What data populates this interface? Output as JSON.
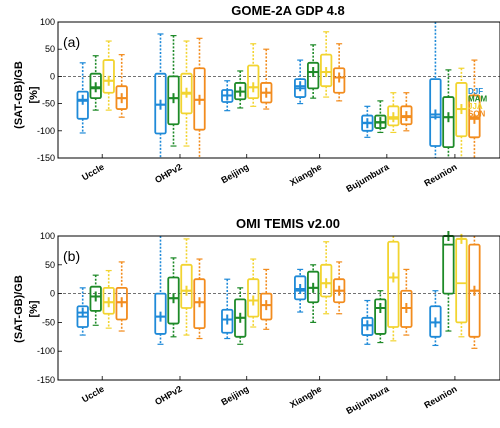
{
  "chart_data": [
    {
      "type": "box",
      "title": "GOME-2A GDP 4.8",
      "panel_label": "(a)",
      "ylabel": "(SAT-GB)/GB",
      "yunit": "[%]",
      "ylim": [
        -150,
        100
      ],
      "yticks": [
        -150,
        -100,
        -50,
        0,
        50,
        100
      ],
      "zero_line": "dashed",
      "grid": false,
      "legend_position": "right",
      "categories": [
        "Uccle",
        "OHPv2",
        "Beijing",
        "Xianghe",
        "Bujumbura",
        "Reunion"
      ],
      "series": [
        {
          "name": "DJF",
          "color": "#1f8ad8",
          "boxes": [
            {
              "wlo": -104,
              "q1": -78,
              "med": -45,
              "q3": -28,
              "whi": 25,
              "mean": -43
            },
            {
              "wlo": -150,
              "q1": -105,
              "med": -52,
              "q3": 5,
              "whi": 78,
              "mean": -52
            },
            {
              "wlo": -63,
              "q1": -47,
              "med": -35,
              "q3": -25,
              "whi": -8,
              "mean": -35
            },
            {
              "wlo": -50,
              "q1": -38,
              "med": -22,
              "q3": -5,
              "whi": 30,
              "mean": -18
            },
            {
              "wlo": -112,
              "q1": -100,
              "med": -85,
              "q3": -72,
              "whi": -55,
              "mean": -86
            },
            {
              "wlo": -150,
              "q1": -128,
              "med": -75,
              "q3": -5,
              "whi": 100,
              "mean": -70
            }
          ]
        },
        {
          "name": "MAM",
          "color": "#1e8a28",
          "boxes": [
            {
              "wlo": -62,
              "q1": -40,
              "med": -22,
              "q3": 5,
              "whi": 38,
              "mean": -20
            },
            {
              "wlo": -128,
              "q1": -88,
              "med": -40,
              "q3": 0,
              "whi": 75,
              "mean": -40
            },
            {
              "wlo": -58,
              "q1": -42,
              "med": -28,
              "q3": -12,
              "whi": 10,
              "mean": -28
            },
            {
              "wlo": -40,
              "q1": -22,
              "med": 8,
              "q3": 25,
              "whi": 58,
              "mean": 8
            },
            {
              "wlo": -103,
              "q1": -95,
              "med": -85,
              "q3": -72,
              "whi": -45,
              "mean": -84
            },
            {
              "wlo": -150,
              "q1": -130,
              "med": -75,
              "q3": -38,
              "whi": 12,
              "mean": -75
            }
          ]
        },
        {
          "name": "JJA",
          "color": "#f2d430",
          "boxes": [
            {
              "wlo": -62,
              "q1": -30,
              "med": -8,
              "q3": 30,
              "whi": 65,
              "mean": -8
            },
            {
              "wlo": -128,
              "q1": -68,
              "med": -32,
              "q3": 5,
              "whi": 65,
              "mean": -30
            },
            {
              "wlo": -55,
              "q1": -40,
              "med": -20,
              "q3": 20,
              "whi": 60,
              "mean": -20
            },
            {
              "wlo": -38,
              "q1": -18,
              "med": 8,
              "q3": 40,
              "whi": 82,
              "mean": 8
            },
            {
              "wlo": -103,
              "q1": -90,
              "med": -78,
              "q3": -55,
              "whi": -30,
              "mean": -75
            },
            {
              "wlo": -150,
              "q1": -110,
              "med": -60,
              "q3": -12,
              "whi": 15,
              "mean": -60
            }
          ]
        },
        {
          "name": "SON",
          "color": "#f28c1e",
          "boxes": [
            {
              "wlo": -75,
              "q1": -60,
              "med": -40,
              "q3": -18,
              "whi": 40,
              "mean": -40
            },
            {
              "wlo": -150,
              "q1": -98,
              "med": -43,
              "q3": 15,
              "whi": 70,
              "mean": -43
            },
            {
              "wlo": -60,
              "q1": -48,
              "med": -30,
              "q3": -12,
              "whi": 50,
              "mean": -30
            },
            {
              "wlo": -45,
              "q1": -30,
              "med": -2,
              "q3": 15,
              "whi": 60,
              "mean": -2
            },
            {
              "wlo": -100,
              "q1": -88,
              "med": -75,
              "q3": -55,
              "whi": -30,
              "mean": -73
            },
            {
              "wlo": -150,
              "q1": -112,
              "med": -75,
              "q3": -35,
              "whi": 30,
              "mean": -78
            }
          ]
        }
      ]
    },
    {
      "type": "box",
      "title": "OMI TEMIS v2.00",
      "panel_label": "(b)",
      "ylabel": "(SAT-GB)/GB",
      "yunit": "[%]",
      "ylim": [
        -150,
        100
      ],
      "yticks": [
        -150,
        -100,
        -50,
        0,
        50,
        100
      ],
      "zero_line": "dashed",
      "grid": false,
      "categories": [
        "Uccle",
        "OHPv2",
        "Beijing",
        "Xianghe",
        "Bujumbura",
        "Reunion"
      ],
      "series": [
        {
          "name": "DJF",
          "color": "#1f8ad8",
          "boxes": [
            {
              "wlo": -72,
              "q1": -58,
              "med": -40,
              "q3": -22,
              "whi": 10,
              "mean": -33
            },
            {
              "wlo": -88,
              "q1": -70,
              "med": -40,
              "q3": 0,
              "whi": 100,
              "mean": -40
            },
            {
              "wlo": -78,
              "q1": -68,
              "med": -45,
              "q3": -28,
              "whi": 25,
              "mean": -45
            },
            {
              "wlo": -32,
              "q1": -10,
              "med": 5,
              "q3": 30,
              "whi": 42,
              "mean": 8
            },
            {
              "wlo": -88,
              "q1": -72,
              "med": -55,
              "q3": -42,
              "whi": -12,
              "mean": -55
            },
            {
              "wlo": -90,
              "q1": -75,
              "med": -50,
              "q3": -22,
              "whi": 5,
              "mean": -50
            }
          ]
        },
        {
          "name": "MAM",
          "color": "#1e8a28",
          "boxes": [
            {
              "wlo": -55,
              "q1": -30,
              "med": -5,
              "q3": 12,
              "whi": 32,
              "mean": -5
            },
            {
              "wlo": -75,
              "q1": -52,
              "med": -8,
              "q3": 28,
              "whi": 62,
              "mean": -8
            },
            {
              "wlo": -88,
              "q1": -75,
              "med": -42,
              "q3": -10,
              "whi": 10,
              "mean": -42
            },
            {
              "wlo": -50,
              "q1": -15,
              "med": 10,
              "q3": 38,
              "whi": 50,
              "mean": 10
            },
            {
              "wlo": -85,
              "q1": -70,
              "med": -25,
              "q3": -10,
              "whi": 5,
              "mean": -25
            },
            {
              "wlo": -65,
              "q1": 0,
              "med": 85,
              "q3": 100,
              "whi": 100,
              "mean": 100
            }
          ]
        },
        {
          "name": "JJA",
          "color": "#f2d430",
          "boxes": [
            {
              "wlo": -60,
              "q1": -35,
              "med": -15,
              "q3": 10,
              "whi": 40,
              "mean": -15
            },
            {
              "wlo": -72,
              "q1": -25,
              "med": 5,
              "q3": 50,
              "whi": 95,
              "mean": 5
            },
            {
              "wlo": -58,
              "q1": -40,
              "med": -12,
              "q3": 25,
              "whi": 60,
              "mean": -12
            },
            {
              "wlo": -35,
              "q1": -5,
              "med": 18,
              "q3": 50,
              "whi": 90,
              "mean": 18
            },
            {
              "wlo": -82,
              "q1": -58,
              "med": 28,
              "q3": 90,
              "whi": 100,
              "mean": 28
            },
            {
              "wlo": -75,
              "q1": -50,
              "med": 18,
              "q3": 95,
              "whi": 100,
              "mean": 95
            }
          ]
        },
        {
          "name": "SON",
          "color": "#f28c1e",
          "boxes": [
            {
              "wlo": -65,
              "q1": -45,
              "med": -15,
              "q3": 10,
              "whi": 55,
              "mean": -15
            },
            {
              "wlo": -78,
              "q1": -60,
              "med": -15,
              "q3": 25,
              "whi": 60,
              "mean": -15
            },
            {
              "wlo": -62,
              "q1": -45,
              "med": -20,
              "q3": 0,
              "whi": 42,
              "mean": -20
            },
            {
              "wlo": -35,
              "q1": -15,
              "med": 5,
              "q3": 25,
              "whi": 55,
              "mean": 5
            },
            {
              "wlo": -72,
              "q1": -58,
              "med": -25,
              "q3": 5,
              "whi": 42,
              "mean": -25
            },
            {
              "wlo": -95,
              "q1": -75,
              "med": 5,
              "q3": 85,
              "whi": 100,
              "mean": 5
            }
          ]
        }
      ]
    }
  ]
}
